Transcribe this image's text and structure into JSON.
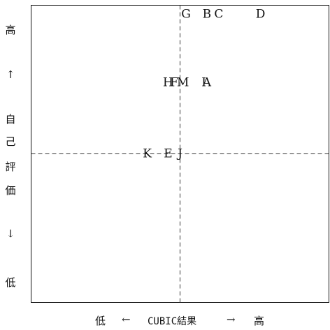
{
  "chart_data": {
    "type": "scatter",
    "title": "",
    "xlabel": "CUBIC結果",
    "ylabel": "自己評価",
    "x_axis": {
      "low_label": "低",
      "arrow_left": "←",
      "name": "CUBIC結果",
      "arrow_right": "→",
      "high_label": "高"
    },
    "y_axis": {
      "high_label": "高",
      "arrow_up": "↑",
      "name_chars": [
        "自",
        "己",
        "評",
        "価"
      ],
      "arrow_down": "↓",
      "low_label": "低"
    },
    "xlim": [
      0,
      100
    ],
    "ylim": [
      0,
      100
    ],
    "quadrant_lines": {
      "x": 50,
      "y": 50,
      "style": "dashed"
    },
    "points": [
      {
        "label": "G",
        "x": 52,
        "y": 97
      },
      {
        "label": "B",
        "x": 59,
        "y": 97
      },
      {
        "label": "C",
        "x": 63,
        "y": 97
      },
      {
        "label": "D",
        "x": 77,
        "y": 97
      },
      {
        "label": "H",
        "x": 46,
        "y": 74
      },
      {
        "label": "F",
        "x": 48,
        "y": 74
      },
      {
        "label": "M",
        "x": 51,
        "y": 74
      },
      {
        "label": "I",
        "x": 58,
        "y": 74
      },
      {
        "label": "A",
        "x": 59,
        "y": 74
      },
      {
        "label": "K",
        "x": 39,
        "y": 50
      },
      {
        "label": "E",
        "x": 46,
        "y": 50
      },
      {
        "label": "J",
        "x": 50,
        "y": 50
      }
    ]
  }
}
